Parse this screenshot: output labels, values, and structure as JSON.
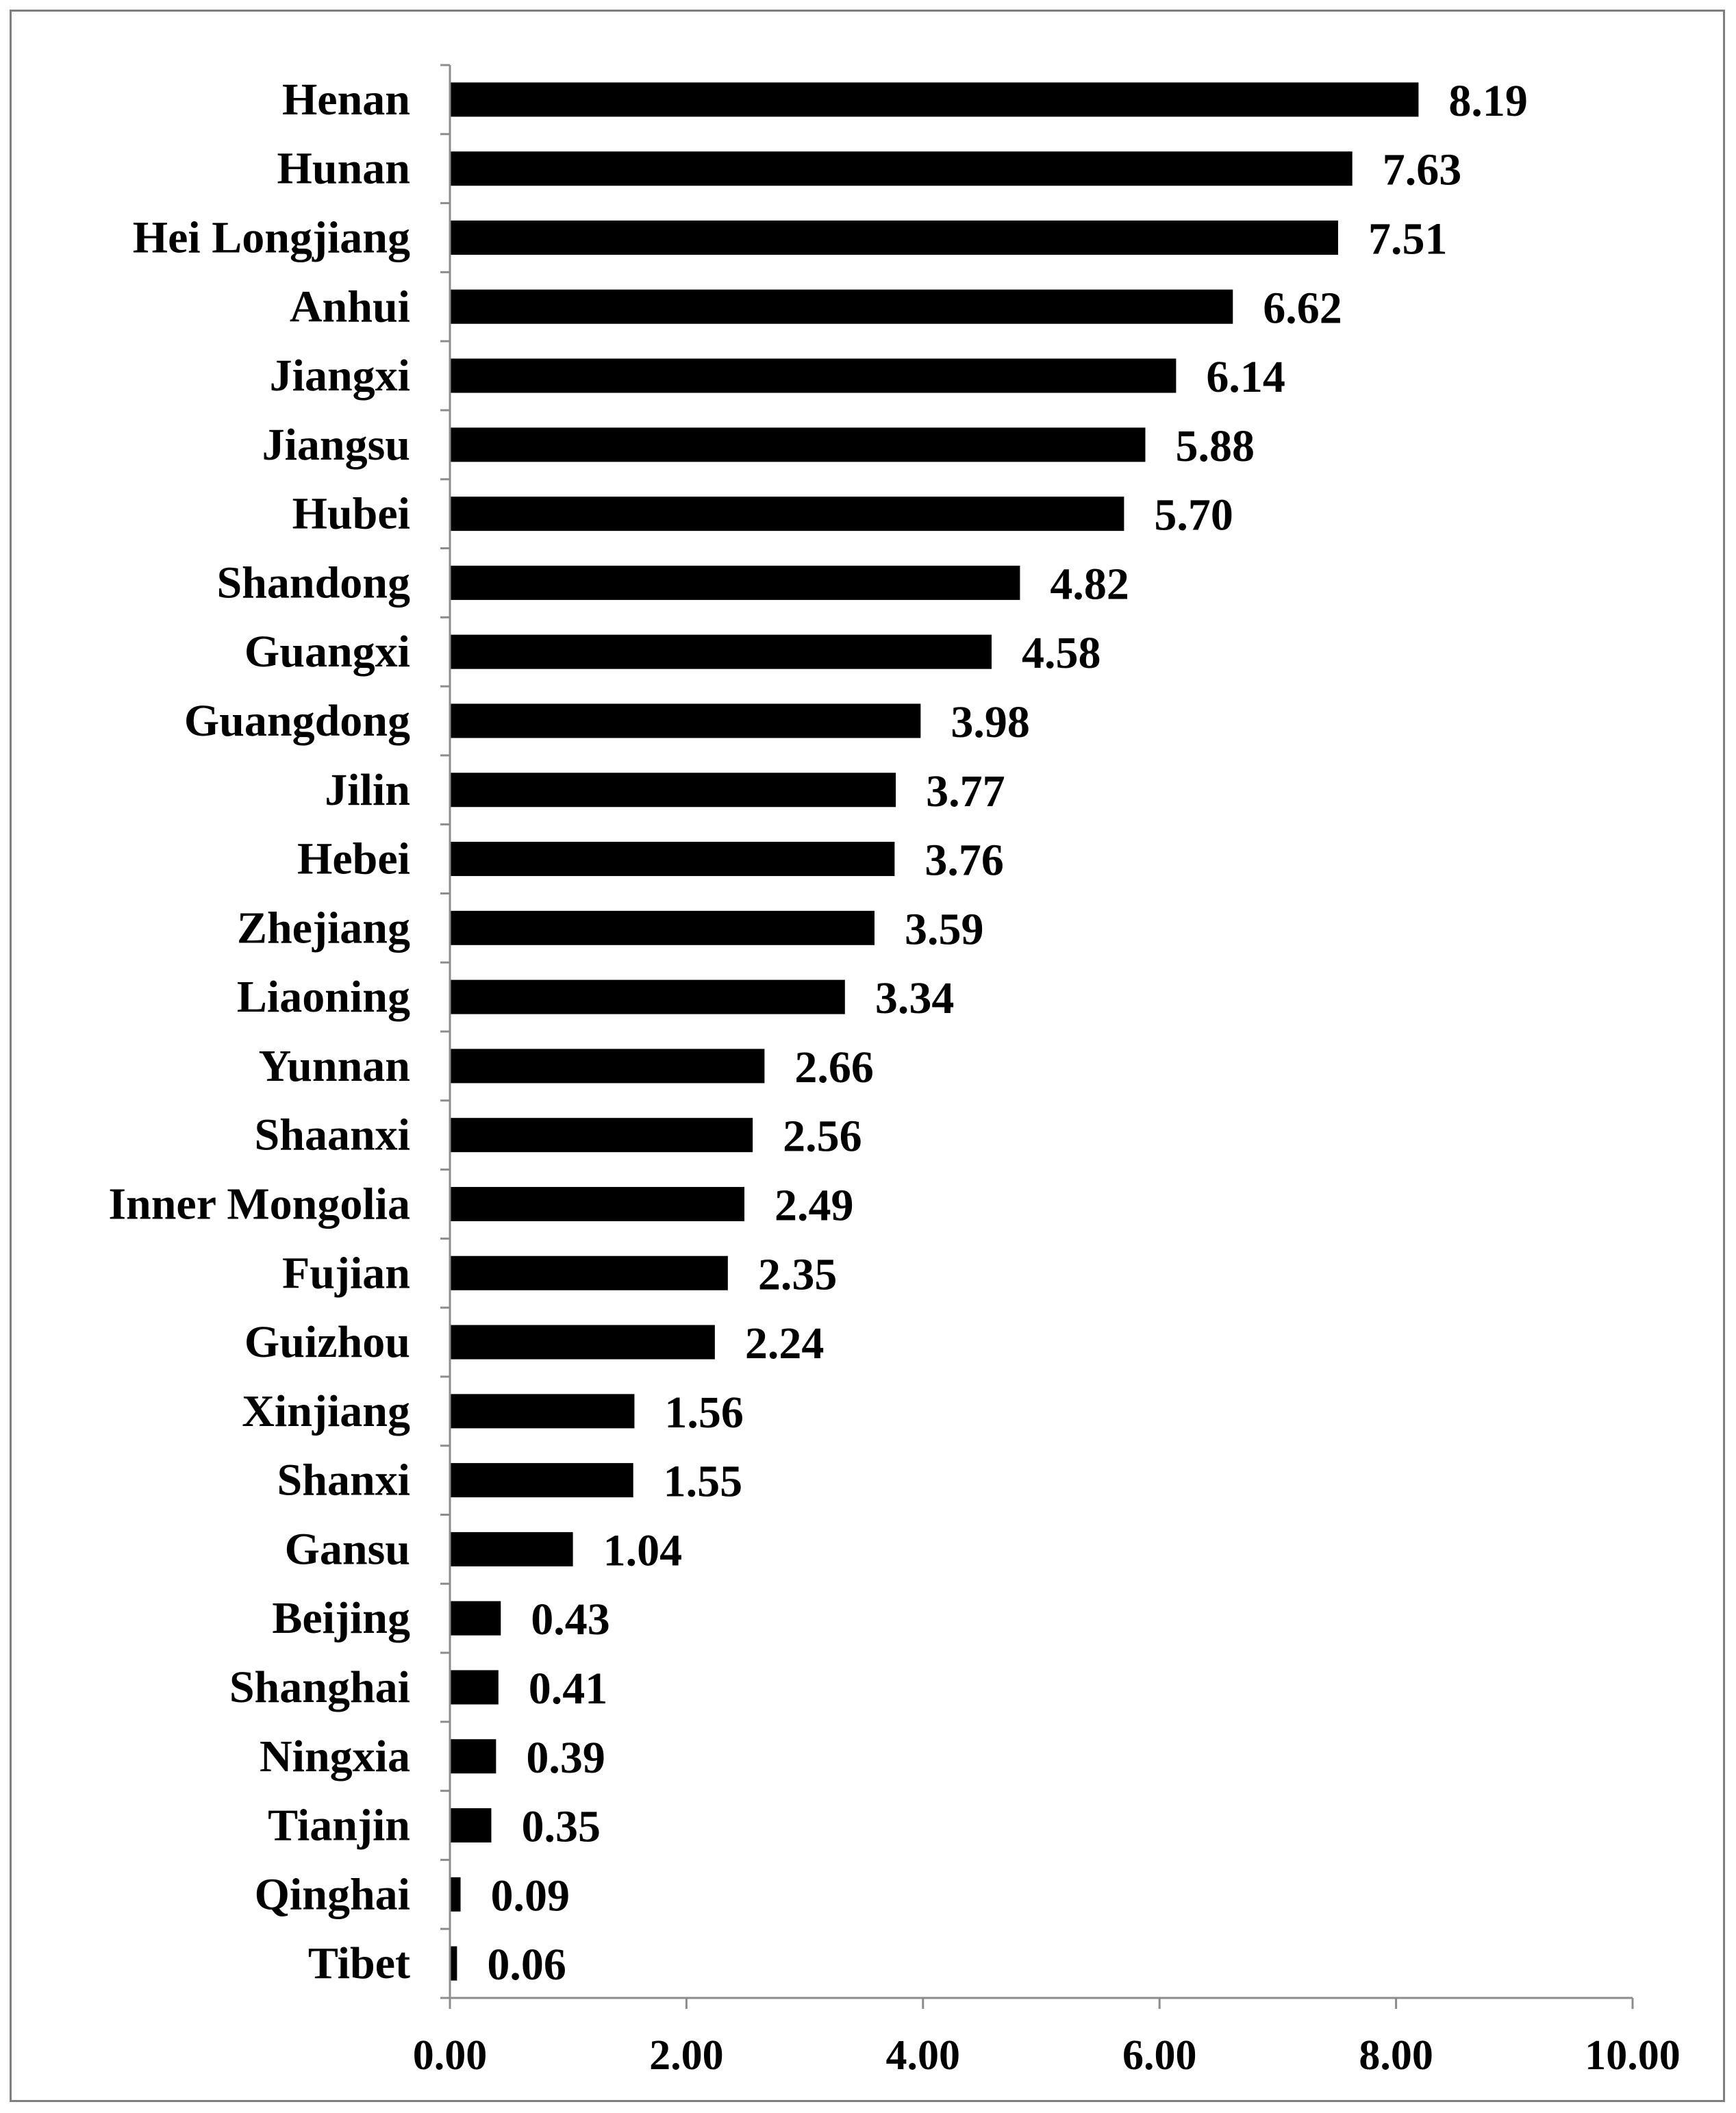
{
  "chart_data": {
    "type": "bar",
    "orientation": "horizontal",
    "categories": [
      "Henan",
      "Hunan",
      "Hei Longjiang",
      "Anhui",
      "Jiangxi",
      "Jiangsu",
      "Hubei",
      "Shandong",
      "Guangxi",
      "Guangdong",
      "Jilin",
      "Hebei",
      "Zhejiang",
      "Liaoning",
      "Yunnan",
      "Shaanxi",
      "Inner Mongolia",
      "Fujian",
      "Guizhou",
      "Xinjiang",
      "Shanxi",
      "Gansu",
      "Beijing",
      "Shanghai",
      "Ningxia",
      "Tianjin",
      "Qinghai",
      "Tibet"
    ],
    "values": [
      8.19,
      7.63,
      7.51,
      6.62,
      6.14,
      5.88,
      5.7,
      4.82,
      4.58,
      3.98,
      3.77,
      3.76,
      3.59,
      3.34,
      2.66,
      2.56,
      2.49,
      2.35,
      2.24,
      1.56,
      1.55,
      1.04,
      0.43,
      0.41,
      0.39,
      0.35,
      0.09,
      0.06
    ],
    "value_labels": [
      "8.19",
      "7.63",
      "7.51",
      "6.62",
      "6.14",
      "5.88",
      "5.70",
      "4.82",
      "4.58",
      "3.98",
      "3.77",
      "3.76",
      "3.59",
      "3.34",
      "2.66",
      "2.56",
      "2.49",
      "2.35",
      "2.24",
      "1.56",
      "1.55",
      "1.04",
      "0.43",
      "0.41",
      "0.39",
      "0.35",
      "0.09",
      "0.06"
    ],
    "x_ticks": [
      0,
      2,
      4,
      6,
      8,
      10
    ],
    "x_tick_labels": [
      "0.00",
      "2.00",
      "4.00",
      "6.00",
      "8.00",
      "10.00"
    ],
    "xlim": [
      0,
      10
    ],
    "title": "",
    "xlabel": "",
    "ylabel": "",
    "grid": false,
    "legend": "none",
    "bar_color": "#000000",
    "axis_color": "#8c8c8c"
  }
}
